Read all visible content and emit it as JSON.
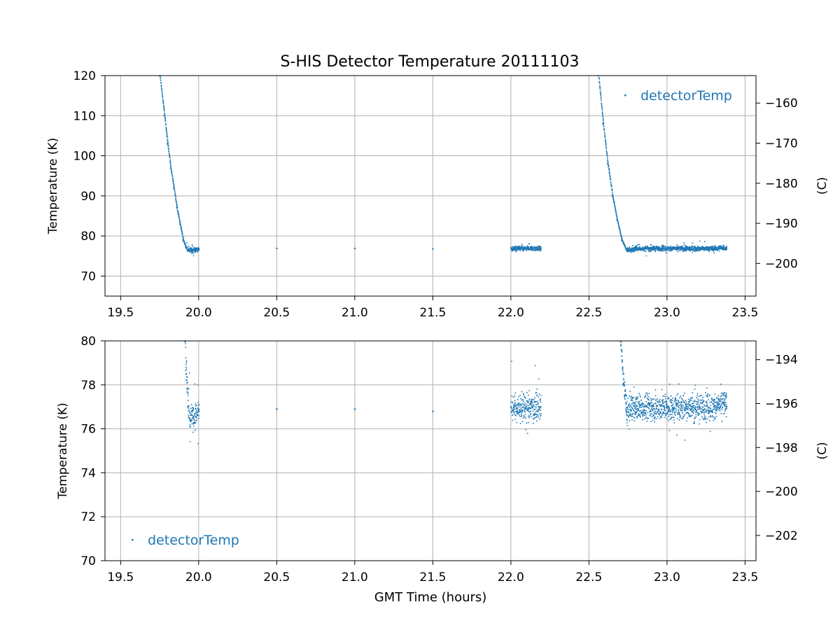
{
  "figure_title": "S-HIS Detector Temperature 20111103",
  "colors": {
    "series": "#1f77b4",
    "grid": "#b0b0b0",
    "axes": "#000000"
  },
  "chart_data": [
    {
      "type": "scatter",
      "title": "",
      "xlabel": "",
      "ylabel": "Temperature (K)",
      "y2label": "(C)",
      "xlim": [
        19.4,
        23.57
      ],
      "ylim": [
        65,
        120
      ],
      "y2lim": [
        -208.15,
        -153.15
      ],
      "x_ticks": [
        19.5,
        20.0,
        20.5,
        21.0,
        21.5,
        22.0,
        22.5,
        23.0,
        23.5
      ],
      "x_tick_labels": [
        "19.5",
        "20.0",
        "20.5",
        "21.0",
        "21.5",
        "22.0",
        "22.5",
        "23.0",
        "23.5"
      ],
      "y_ticks": [
        70,
        80,
        90,
        100,
        110,
        120
      ],
      "y_tick_labels": [
        "70",
        "80",
        "90",
        "100",
        "110",
        "120"
      ],
      "y2_ticks": [
        -200,
        -190,
        -180,
        -170,
        -160
      ],
      "y2_tick_labels": [
        "−200",
        "−190",
        "−180",
        "−170",
        "−160"
      ],
      "grid": true,
      "legend": "top-right",
      "legend_entries": [
        "detectorTemp"
      ],
      "series": [
        {
          "name": "detectorTemp",
          "x": [
            19.75,
            19.78,
            19.8,
            19.82,
            19.84,
            19.86,
            19.88,
            19.9,
            19.92,
            19.94,
            20.0,
            20.5,
            21.0,
            21.5,
            22.0,
            22.19,
            22.56,
            22.59,
            22.62,
            22.65,
            22.68,
            22.71,
            22.74,
            22.8,
            23.0,
            23.2,
            23.3,
            23.36,
            23.38
          ],
          "y": [
            120,
            110,
            103,
            97,
            92,
            87,
            83,
            79,
            77,
            76.5,
            76.8,
            76.9,
            76.9,
            76.8,
            77.0,
            77.0,
            120,
            108,
            98,
            90,
            84,
            79,
            76.5,
            77.0,
            77.0,
            77.0,
            77.0,
            77.2,
            77.0
          ],
          "band": {
            "center": 76.9,
            "spread": 0.6,
            "outlier_range": [
              74.7,
              78.7
            ]
          }
        }
      ]
    },
    {
      "type": "scatter",
      "title": "",
      "xlabel": "GMT Time (hours)",
      "ylabel": "Temperature (K)",
      "y2label": "(C)",
      "xlim": [
        19.4,
        23.57
      ],
      "ylim": [
        70,
        80
      ],
      "y2lim": [
        -203.15,
        -193.15
      ],
      "x_ticks": [
        19.5,
        20.0,
        20.5,
        21.0,
        21.5,
        22.0,
        22.5,
        23.0,
        23.5
      ],
      "x_tick_labels": [
        "19.5",
        "20.0",
        "20.5",
        "21.0",
        "21.5",
        "22.0",
        "22.5",
        "23.0",
        "23.5"
      ],
      "y_ticks": [
        70,
        72,
        74,
        76,
        78,
        80
      ],
      "y_tick_labels": [
        "70",
        "72",
        "74",
        "76",
        "78",
        "80"
      ],
      "y2_ticks": [
        -202,
        -200,
        -198,
        -196,
        -194
      ],
      "y2_tick_labels": [
        "−202",
        "−200",
        "−198",
        "−196",
        "−194"
      ],
      "grid": true,
      "legend": "bottom-left",
      "legend_entries": [
        "detectorTemp"
      ],
      "series": [
        {
          "name": "detectorTemp",
          "x": [
            19.91,
            19.92,
            19.93,
            19.94,
            20.0,
            20.5,
            21.0,
            21.5,
            22.0,
            22.19,
            22.7,
            22.72,
            22.74,
            22.8,
            23.0,
            23.2,
            23.3,
            23.36,
            23.38
          ],
          "y": [
            80,
            78.5,
            77,
            76.5,
            76.8,
            76.9,
            76.9,
            76.8,
            77.0,
            77.0,
            80,
            78,
            76.8,
            77.0,
            77.0,
            77.0,
            77.0,
            77.2,
            77.0
          ],
          "band": {
            "center": 76.9,
            "spread": 0.6,
            "outlier_range": [
              74.7,
              78.7
            ]
          }
        }
      ]
    }
  ]
}
